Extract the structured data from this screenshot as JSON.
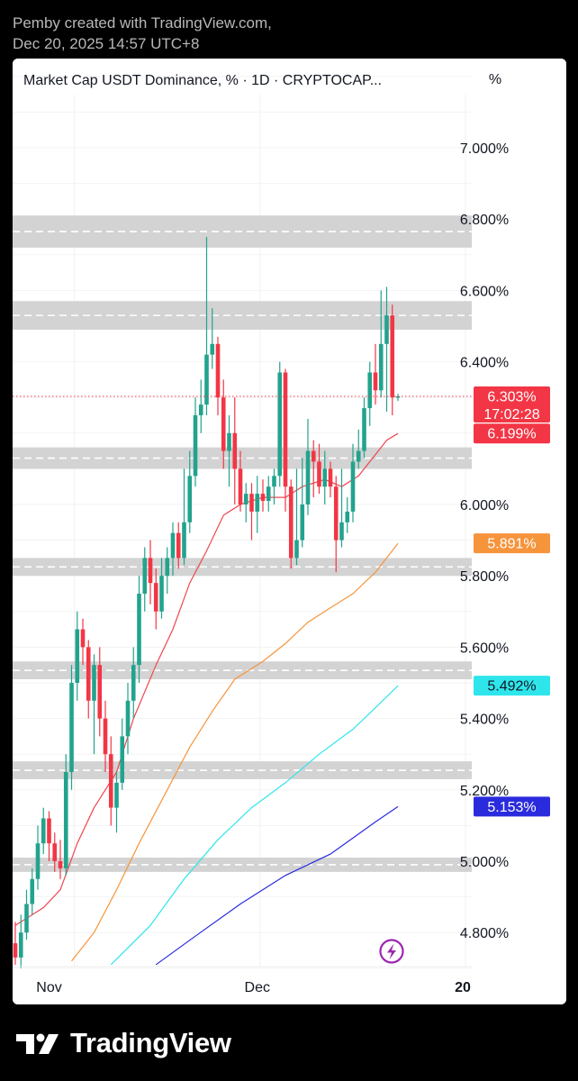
{
  "header": {
    "line1": "Pemby created with TradingView.com,",
    "line2": "Dec 20, 2025 14:57 UTC+8"
  },
  "chart_header": {
    "title": "Market Cap USDT Dominance, % · 1D · CRYPTOCAP...",
    "unit": "%"
  },
  "branding": {
    "name": "TradingView"
  },
  "colors": {
    "up": "#22a38d",
    "down": "#f23645",
    "ma20": "#f0464f",
    "ma50": "#f6943c",
    "ma100": "#2ee5ec",
    "ma200": "#2b2bde",
    "zone": "#d3d3d3",
    "last_price_line": "#f23645",
    "icon_purple": "#9c27b0"
  },
  "chart_data": {
    "type": "candlestick",
    "y_unit": "%",
    "ylim": [
      4.7,
      7.2
    ],
    "y_ticks": [
      "7.000%",
      "6.800%",
      "6.600%",
      "6.400%",
      "6.000%",
      "5.800%",
      "5.600%",
      "5.400%",
      "5.200%",
      "5.000%",
      "4.800%"
    ],
    "x_ticks": [
      "Nov",
      "Dec",
      "20"
    ],
    "grid": true,
    "candles": [
      [
        4.77,
        4.73,
        4.83,
        4.71
      ],
      [
        4.73,
        4.8,
        4.85,
        4.7
      ],
      [
        4.8,
        4.88,
        4.92,
        4.78
      ],
      [
        4.88,
        4.95,
        4.98,
        4.85
      ],
      [
        4.95,
        5.05,
        5.1,
        4.92
      ],
      [
        5.05,
        5.12,
        5.15,
        5.02
      ],
      [
        5.12,
        5.05,
        5.14,
        5.0
      ],
      [
        5.05,
        5.0,
        5.08,
        4.97
      ],
      [
        5.0,
        4.98,
        5.06,
        4.95
      ],
      [
        4.98,
        5.25,
        5.3,
        4.96
      ],
      [
        5.25,
        5.5,
        5.55,
        5.2
      ],
      [
        5.5,
        5.65,
        5.7,
        5.45
      ],
      [
        5.65,
        5.6,
        5.68,
        5.55
      ],
      [
        5.6,
        5.45,
        5.62,
        5.4
      ],
      [
        5.45,
        5.55,
        5.58,
        5.3
      ],
      [
        5.55,
        5.4,
        5.6,
        5.35
      ],
      [
        5.4,
        5.3,
        5.45,
        5.25
      ],
      [
        5.3,
        5.15,
        5.35,
        5.1
      ],
      [
        5.15,
        5.22,
        5.25,
        5.08
      ],
      [
        5.22,
        5.35,
        5.4,
        5.2
      ],
      [
        5.35,
        5.45,
        5.5,
        5.3
      ],
      [
        5.45,
        5.55,
        5.6,
        5.4
      ],
      [
        5.55,
        5.75,
        5.8,
        5.5
      ],
      [
        5.75,
        5.85,
        5.88,
        5.7
      ],
      [
        5.85,
        5.78,
        5.9,
        5.72
      ],
      [
        5.78,
        5.7,
        5.82,
        5.65
      ],
      [
        5.7,
        5.8,
        5.85,
        5.68
      ],
      [
        5.8,
        5.85,
        5.88,
        5.75
      ],
      [
        5.85,
        5.92,
        5.95,
        5.8
      ],
      [
        5.92,
        5.85,
        5.95,
        5.82
      ],
      [
        5.85,
        5.95,
        6.1,
        5.83
      ],
      [
        5.95,
        6.08,
        6.15,
        5.92
      ],
      [
        6.08,
        6.25,
        6.3,
        6.05
      ],
      [
        6.25,
        6.28,
        6.35,
        6.2
      ],
      [
        6.28,
        6.42,
        6.75,
        6.25
      ],
      [
        6.42,
        6.45,
        6.55,
        6.38
      ],
      [
        6.45,
        6.3,
        6.47,
        6.25
      ],
      [
        6.3,
        6.15,
        6.35,
        6.1
      ],
      [
        6.15,
        6.2,
        6.25,
        6.05
      ],
      [
        6.2,
        6.1,
        6.3,
        6.0
      ],
      [
        6.1,
        6.0,
        6.15,
        5.98
      ],
      [
        6.0,
        6.03,
        6.06,
        5.95
      ],
      [
        6.03,
        5.98,
        6.06,
        5.9
      ],
      [
        5.98,
        6.03,
        6.08,
        5.92
      ],
      [
        6.03,
        6.01,
        6.07,
        5.98
      ],
      [
        6.01,
        6.05,
        6.08,
        5.98
      ],
      [
        6.05,
        6.08,
        6.1,
        6.0
      ],
      [
        6.08,
        6.37,
        6.4,
        6.05
      ],
      [
        6.37,
        6.05,
        6.38,
        5.98
      ],
      [
        6.05,
        5.85,
        6.07,
        5.82
      ],
      [
        5.85,
        5.9,
        6.1,
        5.83
      ],
      [
        5.9,
        6.0,
        6.13,
        5.88
      ],
      [
        6.0,
        6.15,
        6.24,
        5.97
      ],
      [
        6.15,
        6.12,
        6.18,
        6.02
      ],
      [
        6.12,
        6.05,
        6.17,
        6.03
      ],
      [
        6.05,
        6.1,
        6.15,
        6.0
      ],
      [
        6.1,
        6.05,
        6.12,
        6.02
      ],
      [
        6.05,
        5.9,
        6.08,
        5.81
      ],
      [
        5.9,
        5.95,
        6.1,
        5.88
      ],
      [
        5.95,
        5.98,
        6.02,
        5.92
      ],
      [
        5.98,
        6.12,
        6.17,
        5.95
      ],
      [
        6.12,
        6.15,
        6.21,
        6.1
      ],
      [
        6.15,
        6.27,
        6.3,
        6.13
      ],
      [
        6.27,
        6.37,
        6.4,
        6.22
      ],
      [
        6.37,
        6.32,
        6.45,
        6.28
      ],
      [
        6.32,
        6.45,
        6.6,
        6.3
      ],
      [
        6.45,
        6.53,
        6.61,
        6.26
      ],
      [
        6.53,
        6.3,
        6.56,
        6.25
      ],
      [
        6.3,
        6.303,
        6.31,
        6.29
      ]
    ],
    "moving_averages": [
      {
        "id": "ma20",
        "last": "6.199%",
        "points": [
          [
            0,
            4.82
          ],
          [
            5,
            4.87
          ],
          [
            8,
            4.92
          ],
          [
            11,
            5.05
          ],
          [
            14,
            5.15
          ],
          [
            18,
            5.25
          ],
          [
            21,
            5.4
          ],
          [
            25,
            5.55
          ],
          [
            28,
            5.65
          ],
          [
            31,
            5.78
          ],
          [
            34,
            5.87
          ],
          [
            37,
            5.97
          ],
          [
            40,
            6.0
          ],
          [
            44,
            6.02
          ],
          [
            48,
            6.02
          ],
          [
            51,
            6.05
          ],
          [
            55,
            6.07
          ],
          [
            58,
            6.05
          ],
          [
            61,
            6.08
          ],
          [
            64,
            6.14
          ],
          [
            66,
            6.18
          ],
          [
            68,
            6.199
          ]
        ]
      },
      {
        "id": "ma50",
        "last": "5.891%",
        "points": [
          [
            10,
            4.72
          ],
          [
            14,
            4.8
          ],
          [
            18,
            4.92
          ],
          [
            22,
            5.05
          ],
          [
            27,
            5.2
          ],
          [
            31,
            5.32
          ],
          [
            35,
            5.42
          ],
          [
            39,
            5.51
          ],
          [
            44,
            5.56
          ],
          [
            48,
            5.61
          ],
          [
            52,
            5.67
          ],
          [
            56,
            5.71
          ],
          [
            60,
            5.75
          ],
          [
            64,
            5.81
          ],
          [
            66,
            5.85
          ],
          [
            68,
            5.891
          ]
        ]
      },
      {
        "id": "ma100",
        "last": "5.492%",
        "points": [
          [
            17,
            4.71
          ],
          [
            24,
            4.82
          ],
          [
            30,
            4.95
          ],
          [
            36,
            5.06
          ],
          [
            42,
            5.15
          ],
          [
            48,
            5.22
          ],
          [
            54,
            5.3
          ],
          [
            60,
            5.37
          ],
          [
            64,
            5.43
          ],
          [
            68,
            5.492
          ]
        ]
      },
      {
        "id": "ma200",
        "last": "5.153%",
        "points": [
          [
            25,
            4.71
          ],
          [
            32,
            4.79
          ],
          [
            40,
            4.88
          ],
          [
            48,
            4.96
          ],
          [
            56,
            5.02
          ],
          [
            64,
            5.11
          ],
          [
            68,
            5.153
          ]
        ]
      }
    ],
    "zones": [
      [
        6.72,
        6.81
      ],
      [
        6.49,
        6.57
      ],
      [
        6.1,
        6.16
      ],
      [
        5.8,
        5.85
      ],
      [
        5.51,
        5.56
      ],
      [
        5.23,
        5.28
      ],
      [
        4.97,
        5.01
      ]
    ],
    "price_labels": [
      {
        "text": "6.303%",
        "sub": "17:02:28",
        "value": 6.303,
        "color": "#f23645"
      },
      {
        "text": "6.199%",
        "value": 6.199,
        "color": "#f23645"
      },
      {
        "text": "5.891%",
        "value": 5.891,
        "color": "#f6943c"
      },
      {
        "text": "5.492%",
        "value": 5.492,
        "color": "#2ee5ec"
      },
      {
        "text": "5.153%",
        "value": 5.153,
        "color": "#2b2bde"
      }
    ]
  }
}
